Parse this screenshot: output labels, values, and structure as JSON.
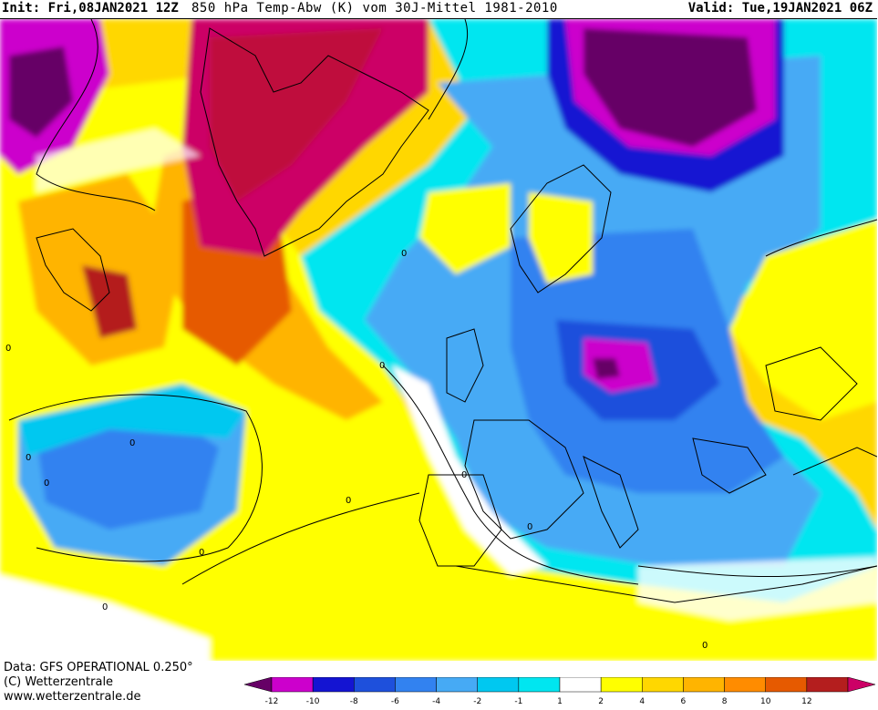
{
  "header": {
    "init": "Init: Fri,08JAN2021 12Z",
    "title": "850 hPa Temp-Abw (K) vom 30J-Mittel 1981-2010",
    "valid": "Valid: Tue,19JAN2021 06Z"
  },
  "footer": {
    "data_line": "Data: GFS OPERATIONAL 0.250°",
    "copyright_line": "(C) Wetterzentrale",
    "url_line": "www.wetterzentrale.de"
  },
  "legend": {
    "colors": [
      "#660066",
      "#cc00cc",
      "#1414d2",
      "#1e50dc",
      "#3282f0",
      "#46aaf5",
      "#00c8f0",
      "#00e6f0",
      "#ffffff",
      "#ffff00",
      "#ffd700",
      "#ffb400",
      "#ff8c00",
      "#e65a00",
      "#b41e1e",
      "#cc0066"
    ],
    "tick_labels": [
      "-12",
      "-10",
      "-8",
      "-6",
      "-4",
      "-2",
      "-1",
      "1",
      "2",
      "4",
      "6",
      "8",
      "10",
      "12"
    ]
  },
  "contour_labels": [
    "0",
    "0",
    "0",
    "0",
    "0",
    "0",
    "0",
    "0",
    "0",
    "0",
    "0",
    "0"
  ]
}
